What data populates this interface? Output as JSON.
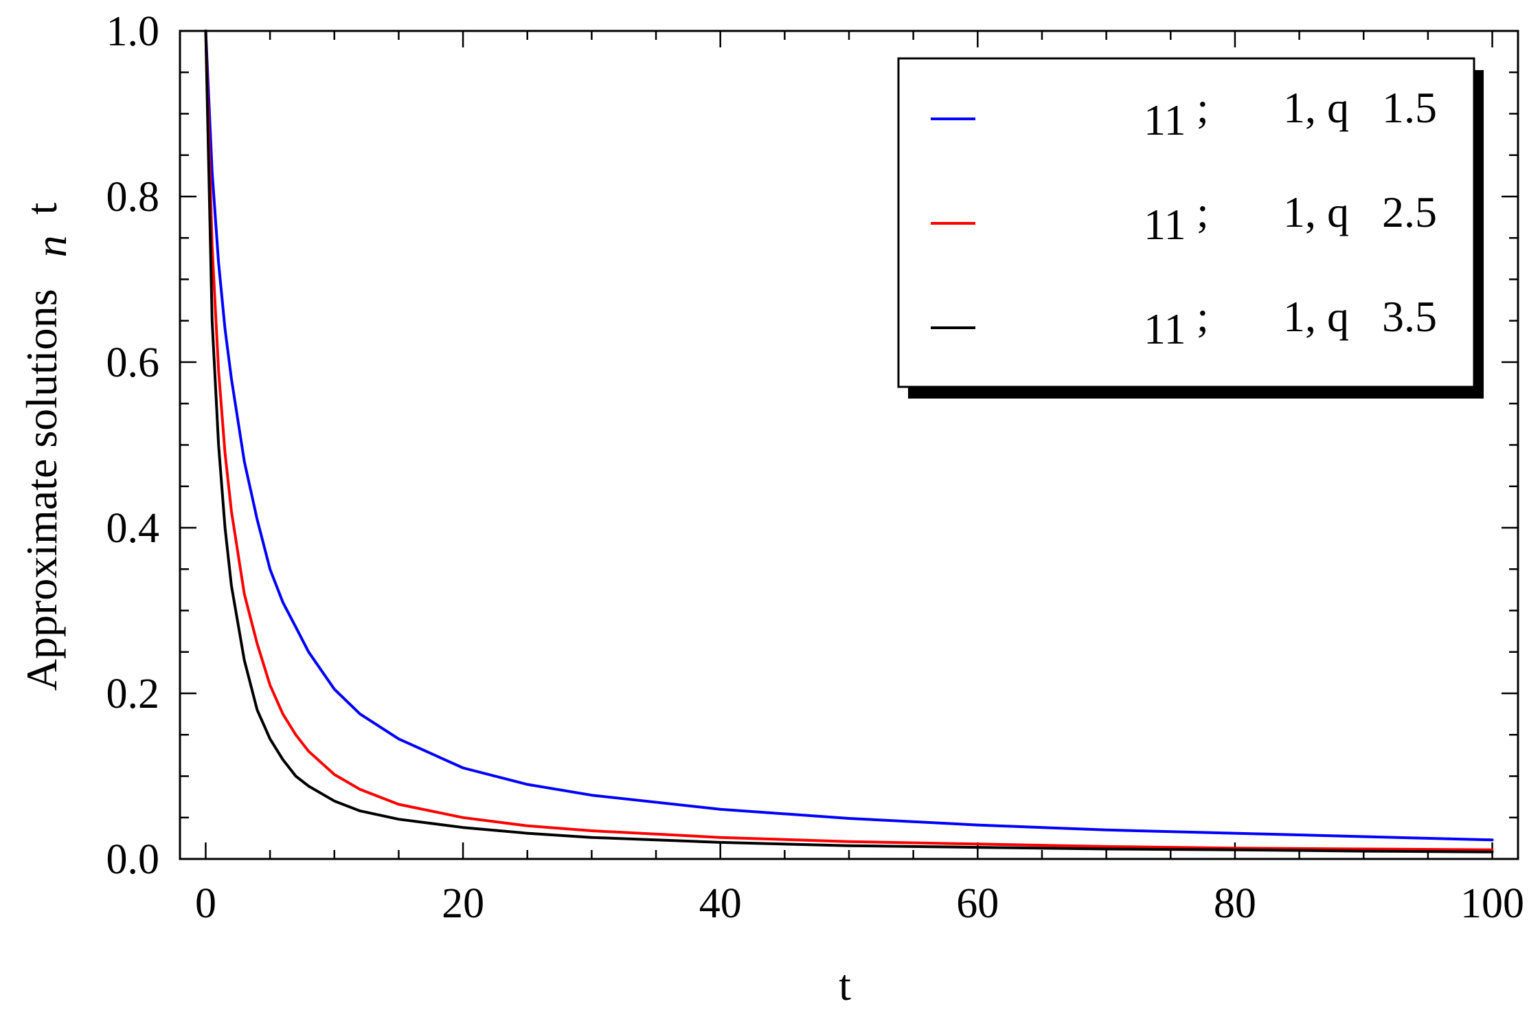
{
  "chart_data": {
    "type": "line",
    "xlabel": "t",
    "ylabel_main": "Approximate solutions",
    "ylabel_sub": "n",
    "ylabel_tail": "t",
    "xlim": [
      -2,
      102
    ],
    "ylim": [
      0,
      1.0
    ],
    "x_ticks": [
      "0",
      "20",
      "40",
      "60",
      "80",
      "100"
    ],
    "x_tick_values": [
      0,
      20,
      40,
      60,
      80,
      100
    ],
    "y_ticks": [
      "0.0",
      "0.2",
      "0.4",
      "0.6",
      "0.8",
      "1.0"
    ],
    "y_tick_values": [
      0,
      0.2,
      0.4,
      0.6,
      0.8,
      1.0
    ],
    "grid": false,
    "legend_position": "top-right",
    "x": [
      0,
      0.5,
      1,
      1.5,
      2,
      3,
      4,
      5,
      6,
      7,
      8,
      10,
      12,
      15,
      20,
      25,
      30,
      40,
      50,
      60,
      70,
      80,
      90,
      100
    ],
    "series": [
      {
        "name": "11 ;   1, q   1.5",
        "name_parts": [
          "11",
          ";",
          "1, q",
          "1.5"
        ],
        "color": "#0000ff",
        "values": [
          1.0,
          0.83,
          0.72,
          0.64,
          0.58,
          0.48,
          0.41,
          0.35,
          0.31,
          0.28,
          0.25,
          0.205,
          0.175,
          0.145,
          0.11,
          0.09,
          0.077,
          0.06,
          0.049,
          0.041,
          0.035,
          0.031,
          0.027,
          0.023
        ]
      },
      {
        "name": "11 ;   1, q   2.5",
        "name_parts": [
          "11",
          ";",
          "1, q",
          "2.5"
        ],
        "color": "#ff0000",
        "values": [
          1.0,
          0.74,
          0.59,
          0.49,
          0.42,
          0.32,
          0.26,
          0.21,
          0.175,
          0.15,
          0.13,
          0.102,
          0.084,
          0.066,
          0.05,
          0.04,
          0.034,
          0.026,
          0.021,
          0.018,
          0.015,
          0.013,
          0.012,
          0.011
        ]
      },
      {
        "name": "11 ;   1, q   3.5",
        "name_parts": [
          "11",
          ";",
          "1, q",
          "3.5"
        ],
        "color": "#000000",
        "values": [
          1.0,
          0.65,
          0.5,
          0.4,
          0.33,
          0.24,
          0.18,
          0.145,
          0.12,
          0.1,
          0.088,
          0.07,
          0.058,
          0.048,
          0.038,
          0.031,
          0.026,
          0.02,
          0.016,
          0.014,
          0.012,
          0.011,
          0.0095,
          0.0085
        ]
      }
    ]
  }
}
